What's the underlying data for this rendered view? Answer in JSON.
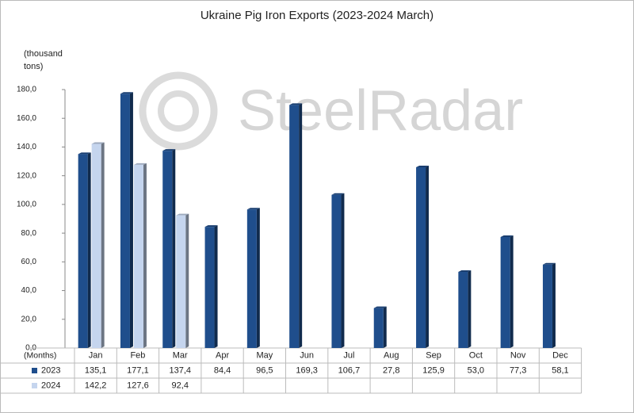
{
  "chart_data": {
    "type": "bar",
    "title": "Ukraine Pig Iron Exports (2023-2024 March)",
    "y_label": "(thousand tons)",
    "x_label": "(Months)",
    "watermark": "SteelRadar",
    "categories": [
      "Jan",
      "Feb",
      "Mar",
      "Apr",
      "May",
      "Jun",
      "Jul",
      "Aug",
      "Sep",
      "Oct",
      "Nov",
      "Dec"
    ],
    "series": [
      {
        "name": "2023",
        "color": "#1f4e8c",
        "values": [
          135.1,
          177.1,
          137.4,
          84.4,
          96.5,
          169.3,
          106.7,
          27.8,
          125.9,
          53.0,
          77.3,
          58.1
        ],
        "value_labels": [
          "135,1",
          "177,1",
          "137,4",
          "84,4",
          "96,5",
          "169,3",
          "106,7",
          "27,8",
          "125,9",
          "53,0",
          "77,3",
          "58,1"
        ]
      },
      {
        "name": "2024",
        "color": "#c5d5ee",
        "values": [
          142.2,
          127.6,
          92.4,
          null,
          null,
          null,
          null,
          null,
          null,
          null,
          null,
          null
        ],
        "value_labels": [
          "142,2",
          "127,6",
          "92,4",
          null,
          null,
          null,
          null,
          null,
          null,
          null,
          null,
          null
        ]
      }
    ],
    "ylim": [
      0,
      180
    ],
    "yticks": [
      {
        "value": 0,
        "label": "0,0"
      },
      {
        "value": 20,
        "label": "20,0"
      },
      {
        "value": 40,
        "label": "40,0"
      },
      {
        "value": 60,
        "label": "60,0"
      },
      {
        "value": 80,
        "label": "80,0"
      },
      {
        "value": 100,
        "label": "100,0"
      },
      {
        "value": 120,
        "label": "120,0"
      },
      {
        "value": 140,
        "label": "140,0"
      },
      {
        "value": 160,
        "label": "160,0"
      },
      {
        "value": 180,
        "label": "180,0"
      }
    ],
    "grid": false
  }
}
